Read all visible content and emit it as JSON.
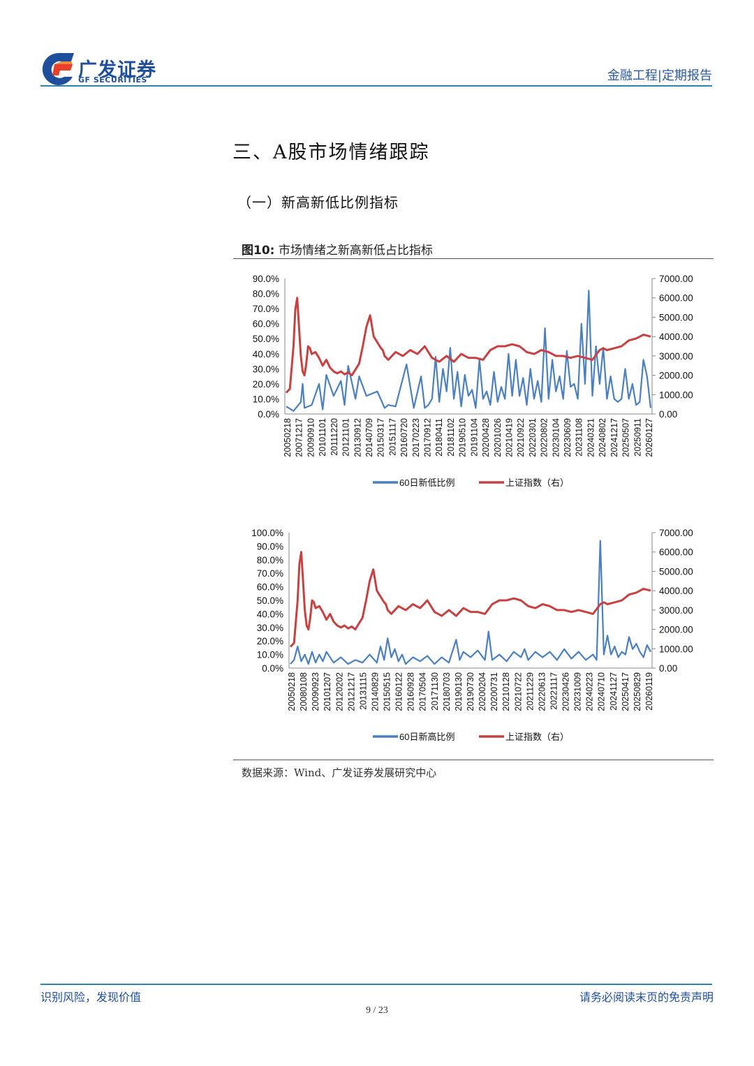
{
  "header": {
    "logo_cn": "广发证券",
    "logo_en": "GF SECURITIES",
    "report_type": "金融工程|定期报告",
    "brand_color": "#1f4e9a",
    "accent_color": "#e8402a"
  },
  "section_title": "三、A股市场情绪跟踪",
  "sub_title": "（一）新高新低比例指标",
  "figure": {
    "label": "图10:",
    "title": "市场情绪之新高新低占比指标"
  },
  "source": "数据来源：Wind、广发证券发展研究中心",
  "footer": {
    "left": "识别风险，发现价值",
    "right": "请务必阅读末页的免责声明",
    "page": "9 / 23"
  },
  "chart_data": [
    {
      "type": "line",
      "y_left_ticks": [
        "90.0%",
        "80.0%",
        "70.0%",
        "60.0%",
        "50.0%",
        "40.0%",
        "30.0%",
        "20.0%",
        "10.0%",
        "0.0%"
      ],
      "y_right_ticks": [
        "7000.00",
        "6000.00",
        "5000.00",
        "4000.00",
        "3000.00",
        "2000.00",
        "1000.00",
        "0.00"
      ],
      "ylim_left": [
        0,
        90
      ],
      "ylim_right": [
        0,
        7000
      ],
      "x_tick_labels": [
        "20050218",
        "20071217",
        "20090910",
        "20101101",
        "20111220",
        "20121101",
        "20130912",
        "20140709",
        "20150317",
        "20151117",
        "20160720",
        "20170223",
        "20170912",
        "20180411",
        "20181102",
        "20190510",
        "20191104",
        "20200428",
        "20201026",
        "20210419",
        "20210922",
        "20220301",
        "20220802",
        "20230104",
        "20230609",
        "20231108",
        "20240321",
        "20240802",
        "20241217",
        "20250507",
        "20250911",
        "20260127"
      ],
      "series": [
        {
          "name": "60日新低比例",
          "axis": "left",
          "color": "#4a7fc1",
          "t": [
            0,
            0.02,
            0.04,
            0.045,
            0.05,
            0.07,
            0.09,
            0.1,
            0.11,
            0.13,
            0.15,
            0.16,
            0.17,
            0.19,
            0.2,
            0.22,
            0.25,
            0.27,
            0.28,
            0.3,
            0.33,
            0.35,
            0.37,
            0.38,
            0.39,
            0.4,
            0.41,
            0.42,
            0.43,
            0.44,
            0.45,
            0.46,
            0.47,
            0.48,
            0.49,
            0.5,
            0.51,
            0.52,
            0.53,
            0.54,
            0.55,
            0.56,
            0.57,
            0.58,
            0.59,
            0.6,
            0.61,
            0.62,
            0.63,
            0.64,
            0.65,
            0.66,
            0.67,
            0.68,
            0.69,
            0.7,
            0.71,
            0.72,
            0.73,
            0.74,
            0.75,
            0.76,
            0.77,
            0.78,
            0.79,
            0.8,
            0.81,
            0.82,
            0.83,
            0.84,
            0.85,
            0.86,
            0.87,
            0.88,
            0.89,
            0.9,
            0.91,
            0.92,
            0.93,
            0.94,
            0.95,
            0.96,
            0.97,
            0.98,
            0.99,
            1.0
          ],
          "values": [
            5,
            2,
            8,
            20,
            4,
            6,
            20,
            3,
            26,
            12,
            22,
            6,
            32,
            10,
            25,
            12,
            15,
            4,
            6,
            5,
            33,
            4,
            25,
            4,
            6,
            10,
            38,
            8,
            30,
            15,
            44,
            10,
            28,
            5,
            26,
            12,
            16,
            4,
            36,
            10,
            15,
            6,
            28,
            8,
            18,
            10,
            40,
            12,
            36,
            12,
            24,
            6,
            30,
            10,
            22,
            8,
            57,
            10,
            36,
            15,
            25,
            10,
            42,
            18,
            20,
            10,
            60,
            20,
            82,
            12,
            45,
            20,
            44,
            10,
            25,
            10,
            8,
            10,
            30,
            10,
            20,
            6,
            8,
            36,
            25,
            4
          ]
        },
        {
          "name": "上证指数（右）",
          "axis": "right",
          "color": "#c94040",
          "t": [
            0,
            0.01,
            0.02,
            0.025,
            0.03,
            0.035,
            0.04,
            0.045,
            0.05,
            0.055,
            0.06,
            0.065,
            0.07,
            0.08,
            0.09,
            0.1,
            0.11,
            0.12,
            0.13,
            0.14,
            0.15,
            0.16,
            0.17,
            0.18,
            0.19,
            0.2,
            0.21,
            0.22,
            0.23,
            0.24,
            0.25,
            0.26,
            0.265,
            0.27,
            0.275,
            0.28,
            0.29,
            0.3,
            0.32,
            0.34,
            0.36,
            0.38,
            0.4,
            0.42,
            0.44,
            0.46,
            0.48,
            0.5,
            0.52,
            0.54,
            0.56,
            0.58,
            0.6,
            0.62,
            0.64,
            0.66,
            0.68,
            0.7,
            0.72,
            0.74,
            0.76,
            0.78,
            0.8,
            0.82,
            0.84,
            0.86,
            0.87,
            0.88,
            0.9,
            0.92,
            0.94,
            0.96,
            0.98,
            1.0
          ],
          "values": [
            1100,
            1300,
            3500,
            5400,
            6000,
            4500,
            3000,
            2200,
            2000,
            2600,
            3500,
            3400,
            3100,
            3200,
            2900,
            2500,
            2800,
            2400,
            2200,
            2100,
            2200,
            2050,
            2150,
            2000,
            2300,
            2600,
            3500,
            4500,
            5100,
            4000,
            3700,
            3400,
            3300,
            3000,
            2900,
            2800,
            3000,
            3200,
            3000,
            3300,
            3100,
            3500,
            2900,
            2700,
            3000,
            2700,
            3100,
            2900,
            2900,
            2800,
            3300,
            3500,
            3500,
            3600,
            3500,
            3200,
            3100,
            3300,
            3200,
            3000,
            3000,
            2900,
            3000,
            2900,
            2800,
            3300,
            3400,
            3300,
            3400,
            3500,
            3800,
            3900,
            4100,
            4000
          ]
        }
      ]
    },
    {
      "type": "line",
      "y_left_ticks": [
        "100.0%",
        "90.0%",
        "80.0%",
        "70.0%",
        "60.0%",
        "50.0%",
        "40.0%",
        "30.0%",
        "20.0%",
        "10.0%",
        "0.0%"
      ],
      "y_right_ticks": [
        "7000.00",
        "6000.00",
        "5000.00",
        "4000.00",
        "3000.00",
        "2000.00",
        "1000.00",
        "0.00"
      ],
      "ylim_left": [
        0,
        100
      ],
      "ylim_right": [
        0,
        7000
      ],
      "x_tick_labels": [
        "20050218",
        "20080108",
        "20090923",
        "20101207",
        "20120202",
        "20121217",
        "20131115",
        "20140829",
        "20150515",
        "20160122",
        "20160928",
        "20170504",
        "20171130",
        "20180703",
        "20190130",
        "20190730",
        "20200204",
        "20200731",
        "20210128",
        "20210722",
        "20211229",
        "20220613",
        "20221117",
        "20230426",
        "20231009",
        "20240223",
        "20240710",
        "20241127",
        "20250417",
        "20250829",
        "20260119"
      ],
      "series": [
        {
          "name": "60日新高比例",
          "axis": "left",
          "color": "#4a7fc1",
          "t": [
            0,
            0.01,
            0.02,
            0.03,
            0.04,
            0.05,
            0.06,
            0.07,
            0.08,
            0.09,
            0.1,
            0.12,
            0.14,
            0.16,
            0.18,
            0.2,
            0.22,
            0.24,
            0.25,
            0.26,
            0.27,
            0.28,
            0.29,
            0.3,
            0.31,
            0.32,
            0.34,
            0.36,
            0.38,
            0.4,
            0.42,
            0.44,
            0.46,
            0.47,
            0.48,
            0.5,
            0.52,
            0.54,
            0.55,
            0.56,
            0.58,
            0.6,
            0.62,
            0.64,
            0.65,
            0.66,
            0.68,
            0.7,
            0.72,
            0.74,
            0.76,
            0.78,
            0.8,
            0.82,
            0.84,
            0.85,
            0.86,
            0.87,
            0.88,
            0.89,
            0.9,
            0.91,
            0.92,
            0.93,
            0.94,
            0.95,
            0.96,
            0.97,
            0.98,
            0.99,
            1.0
          ],
          "values": [
            3,
            6,
            16,
            5,
            10,
            3,
            12,
            4,
            10,
            5,
            12,
            4,
            8,
            3,
            6,
            4,
            10,
            4,
            16,
            6,
            22,
            8,
            14,
            5,
            10,
            3,
            8,
            5,
            9,
            3,
            8,
            4,
            21,
            6,
            12,
            8,
            13,
            6,
            27,
            6,
            10,
            5,
            12,
            8,
            14,
            6,
            12,
            8,
            12,
            6,
            14,
            7,
            12,
            6,
            10,
            6,
            94,
            10,
            24,
            10,
            16,
            8,
            12,
            10,
            23,
            14,
            18,
            12,
            8,
            17,
            12
          ]
        },
        {
          "name": "上证指数（右）",
          "axis": "right",
          "color": "#c94040",
          "t": [
            0,
            0.01,
            0.02,
            0.025,
            0.03,
            0.035,
            0.04,
            0.045,
            0.05,
            0.055,
            0.06,
            0.065,
            0.07,
            0.08,
            0.09,
            0.1,
            0.11,
            0.12,
            0.13,
            0.14,
            0.15,
            0.16,
            0.17,
            0.18,
            0.19,
            0.2,
            0.21,
            0.22,
            0.23,
            0.24,
            0.25,
            0.26,
            0.265,
            0.27,
            0.275,
            0.28,
            0.29,
            0.3,
            0.32,
            0.34,
            0.36,
            0.38,
            0.4,
            0.42,
            0.44,
            0.46,
            0.48,
            0.5,
            0.52,
            0.54,
            0.56,
            0.58,
            0.6,
            0.62,
            0.64,
            0.66,
            0.68,
            0.7,
            0.72,
            0.74,
            0.76,
            0.78,
            0.8,
            0.82,
            0.84,
            0.86,
            0.87,
            0.88,
            0.9,
            0.92,
            0.94,
            0.96,
            0.98,
            1.0
          ],
          "values": [
            1100,
            1300,
            3500,
            5400,
            6000,
            4500,
            3000,
            2200,
            2000,
            2600,
            3500,
            3400,
            3100,
            3200,
            2900,
            2500,
            2800,
            2400,
            2200,
            2100,
            2200,
            2050,
            2150,
            2000,
            2300,
            2600,
            3500,
            4500,
            5100,
            4000,
            3700,
            3400,
            3300,
            3000,
            2900,
            2800,
            3000,
            3200,
            3000,
            3300,
            3100,
            3500,
            2900,
            2700,
            3000,
            2700,
            3100,
            2900,
            2900,
            2800,
            3300,
            3500,
            3500,
            3600,
            3500,
            3200,
            3100,
            3300,
            3200,
            3000,
            3000,
            2900,
            3000,
            2900,
            2800,
            3300,
            3400,
            3300,
            3400,
            3500,
            3800,
            3900,
            4100,
            4000
          ]
        }
      ]
    }
  ]
}
